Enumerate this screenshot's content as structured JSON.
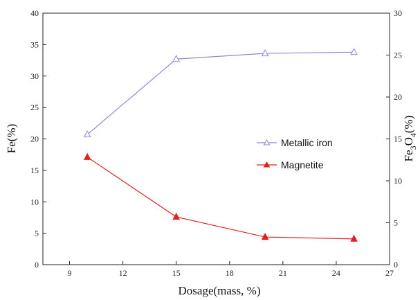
{
  "chart_data": {
    "type": "line",
    "xlabel": "Dosage(mass, %)",
    "ylabel_left": "Fe(%)",
    "ylabel_right": {
      "base": "Fe",
      "sub1": "3",
      "mid": "O",
      "sub2": "4",
      "suffix": "(%)"
    },
    "xlim": [
      7.5,
      27
    ],
    "ylim_left": [
      0,
      40
    ],
    "ylim_right": [
      0,
      30
    ],
    "x_ticks": [
      9,
      12,
      15,
      18,
      21,
      24,
      27
    ],
    "y_left_ticks": [
      0,
      5,
      10,
      15,
      20,
      25,
      30,
      35,
      40
    ],
    "y_right_ticks": [
      0,
      5,
      10,
      15,
      20,
      25,
      30
    ],
    "grid": false,
    "legend_position": "center-right",
    "series": [
      {
        "name": "Metallic iron",
        "axis": "left",
        "marker": "open-triangle",
        "color": "#8a8ad0",
        "x": [
          10,
          15,
          20,
          25
        ],
        "y": [
          20.7,
          32.7,
          33.6,
          33.8
        ]
      },
      {
        "name": "Magnetite",
        "axis": "left",
        "marker": "filled-triangle",
        "color": "#e21e1e",
        "x": [
          10,
          15,
          20,
          25
        ],
        "y": [
          17.1,
          7.6,
          4.4,
          4.1
        ]
      }
    ]
  }
}
